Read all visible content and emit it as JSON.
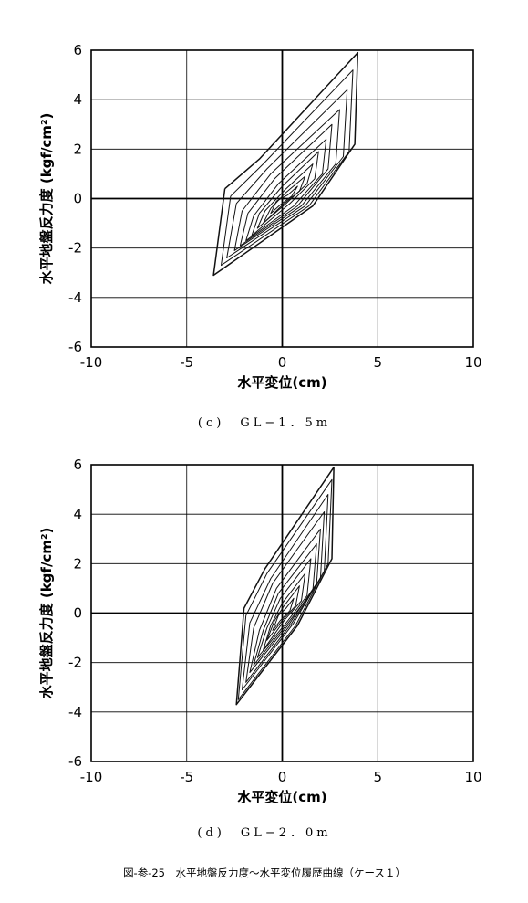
{
  "chart_data": [
    {
      "type": "line",
      "caption": "(c)　GL−1．5m",
      "xlabel": "水平変位(cm)",
      "ylabel": "水平地盤反力度 (kgf/cm²)",
      "xlim": [
        -10,
        10
      ],
      "ylim": [
        -6,
        6
      ],
      "xticks": [
        "-10",
        "-5",
        "0",
        "5",
        "10"
      ],
      "yticks": [
        "6",
        "4",
        "2",
        "0",
        "-2",
        "-4",
        "-6"
      ],
      "grid": true,
      "series": [
        {
          "values": [
            [
              -0.3,
              -0.1
            ],
            [
              0.3,
              0.15
            ],
            [
              0.8,
              0.5
            ],
            [
              0.5,
              0.1
            ],
            [
              -0.1,
              -0.25
            ],
            [
              -0.6,
              -0.6
            ],
            [
              -0.3,
              -0.1
            ]
          ]
        },
        {
          "values": [
            [
              -0.6,
              -0.4
            ],
            [
              0.2,
              0.25
            ],
            [
              1.2,
              0.9
            ],
            [
              0.9,
              0.3
            ],
            [
              0.1,
              -0.2
            ],
            [
              -1.0,
              -1.0
            ],
            [
              -0.6,
              -0.4
            ]
          ]
        },
        {
          "values": [
            [
              -0.9,
              -0.5
            ],
            [
              0.2,
              0.4
            ],
            [
              1.6,
              1.4
            ],
            [
              1.3,
              0.6
            ],
            [
              0.2,
              -0.2
            ],
            [
              -1.3,
              -1.2
            ],
            [
              -0.9,
              -0.5
            ]
          ]
        },
        {
          "values": [
            [
              -1.2,
              -0.6
            ],
            [
              0.0,
              0.5
            ],
            [
              1.9,
              1.9
            ],
            [
              1.7,
              0.8
            ],
            [
              0.4,
              -0.2
            ],
            [
              -1.6,
              -1.5
            ],
            [
              -1.2,
              -0.6
            ]
          ]
        },
        {
          "values": [
            [
              -1.5,
              -0.7
            ],
            [
              -0.2,
              0.6
            ],
            [
              2.3,
              2.4
            ],
            [
              2.1,
              1.0
            ],
            [
              0.6,
              -0.3
            ],
            [
              -1.9,
              -1.7
            ],
            [
              -1.5,
              -0.7
            ]
          ]
        },
        {
          "values": [
            [
              -1.8,
              -0.6
            ],
            [
              -0.4,
              0.8
            ],
            [
              2.6,
              3.0
            ],
            [
              2.4,
              1.2
            ],
            [
              0.8,
              -0.3
            ],
            [
              -2.2,
              -1.9
            ],
            [
              -1.8,
              -0.6
            ]
          ]
        },
        {
          "values": [
            [
              -2.1,
              -0.5
            ],
            [
              -0.6,
              1.0
            ],
            [
              3.0,
              3.6
            ],
            [
              2.8,
              1.4
            ],
            [
              1.0,
              -0.3
            ],
            [
              -2.5,
              -2.1
            ],
            [
              -2.1,
              -0.5
            ]
          ]
        },
        {
          "values": [
            [
              -2.4,
              -0.2
            ],
            [
              -0.8,
              1.2
            ],
            [
              3.4,
              4.4
            ],
            [
              3.2,
              1.7
            ],
            [
              1.2,
              -0.3
            ],
            [
              -2.9,
              -2.4
            ],
            [
              -2.4,
              -0.2
            ]
          ]
        },
        {
          "values": [
            [
              -2.7,
              0.1
            ],
            [
              -1.0,
              1.4
            ],
            [
              3.7,
              5.2
            ],
            [
              3.5,
              1.9
            ],
            [
              1.4,
              -0.3
            ],
            [
              -3.2,
              -2.7
            ],
            [
              -2.7,
              0.1
            ]
          ]
        },
        {
          "values": [
            [
              -3.0,
              0.4
            ],
            [
              -1.2,
              1.6
            ],
            [
              3.95,
              5.9
            ],
            [
              3.8,
              2.2
            ],
            [
              1.6,
              -0.3
            ],
            [
              -3.6,
              -3.1
            ],
            [
              -3.0,
              0.4
            ]
          ]
        }
      ]
    },
    {
      "type": "line",
      "caption": "(d)　GL−2．0m",
      "xlabel": "水平変位(cm)",
      "ylabel": "水平地盤反力度 (kgf/cm²)",
      "xlim": [
        -10,
        10
      ],
      "ylim": [
        -6,
        6
      ],
      "xticks": [
        "-10",
        "-5",
        "0",
        "5",
        "10"
      ],
      "yticks": [
        "6",
        "4",
        "2",
        "0",
        "-2",
        "-4",
        "-6"
      ],
      "grid": true,
      "series": [
        {
          "values": [
            [
              -0.2,
              -0.1
            ],
            [
              0.2,
              0.2
            ],
            [
              0.6,
              0.6
            ],
            [
              0.4,
              0.1
            ],
            [
              -0.1,
              -0.3
            ],
            [
              -0.5,
              -0.7
            ],
            [
              -0.2,
              -0.1
            ]
          ]
        },
        {
          "values": [
            [
              -0.4,
              -0.3
            ],
            [
              0.1,
              0.3
            ],
            [
              0.9,
              1.1
            ],
            [
              0.7,
              0.3
            ],
            [
              0.0,
              -0.3
            ],
            [
              -0.8,
              -1.1
            ],
            [
              -0.4,
              -0.3
            ]
          ]
        },
        {
          "values": [
            [
              -0.6,
              -0.5
            ],
            [
              0.0,
              0.4
            ],
            [
              1.2,
              1.6
            ],
            [
              1.0,
              0.5
            ],
            [
              0.1,
              -0.3
            ],
            [
              -1.0,
              -1.5
            ],
            [
              -0.6,
              -0.5
            ]
          ]
        },
        {
          "values": [
            [
              -0.8,
              -0.6
            ],
            [
              -0.1,
              0.6
            ],
            [
              1.5,
              2.2
            ],
            [
              1.3,
              0.7
            ],
            [
              0.2,
              -0.4
            ],
            [
              -1.3,
              -1.8
            ],
            [
              -0.8,
              -0.6
            ]
          ]
        },
        {
          "values": [
            [
              -1.0,
              -0.7
            ],
            [
              -0.2,
              0.8
            ],
            [
              1.8,
              2.8
            ],
            [
              1.6,
              0.9
            ],
            [
              0.3,
              -0.4
            ],
            [
              -1.5,
              -2.1
            ],
            [
              -1.0,
              -0.7
            ]
          ]
        },
        {
          "values": [
            [
              -1.2,
              -0.7
            ],
            [
              -0.3,
              1.0
            ],
            [
              2.0,
              3.4
            ],
            [
              1.8,
              1.2
            ],
            [
              0.4,
              -0.4
            ],
            [
              -1.7,
              -2.4
            ],
            [
              -1.2,
              -0.7
            ]
          ]
        },
        {
          "values": [
            [
              -1.5,
              -0.6
            ],
            [
              -0.5,
              1.2
            ],
            [
              2.2,
              4.1
            ],
            [
              2.0,
              1.4
            ],
            [
              0.5,
              -0.4
            ],
            [
              -1.9,
              -2.8
            ],
            [
              -1.5,
              -0.6
            ]
          ]
        },
        {
          "values": [
            [
              -1.7,
              -0.4
            ],
            [
              -0.6,
              1.4
            ],
            [
              2.4,
              4.8
            ],
            [
              2.2,
              1.7
            ],
            [
              0.6,
              -0.4
            ],
            [
              -2.1,
              -3.1
            ],
            [
              -1.7,
              -0.4
            ]
          ]
        },
        {
          "values": [
            [
              -1.9,
              -0.1
            ],
            [
              -0.8,
              1.6
            ],
            [
              2.6,
              5.4
            ],
            [
              2.4,
              2.0
            ],
            [
              0.7,
              -0.5
            ],
            [
              -2.3,
              -3.5
            ],
            [
              -1.9,
              -0.1
            ]
          ]
        },
        {
          "values": [
            [
              -2.0,
              0.2
            ],
            [
              -0.9,
              1.8
            ],
            [
              2.7,
              5.9
            ],
            [
              2.6,
              2.2
            ],
            [
              0.8,
              -0.5
            ],
            [
              -2.4,
              -3.7
            ],
            [
              -2.0,
              0.2
            ]
          ]
        }
      ]
    }
  ],
  "figure_caption": "図-参-25　水平地盤反力度～水平変位履歴曲線（ケース１）"
}
